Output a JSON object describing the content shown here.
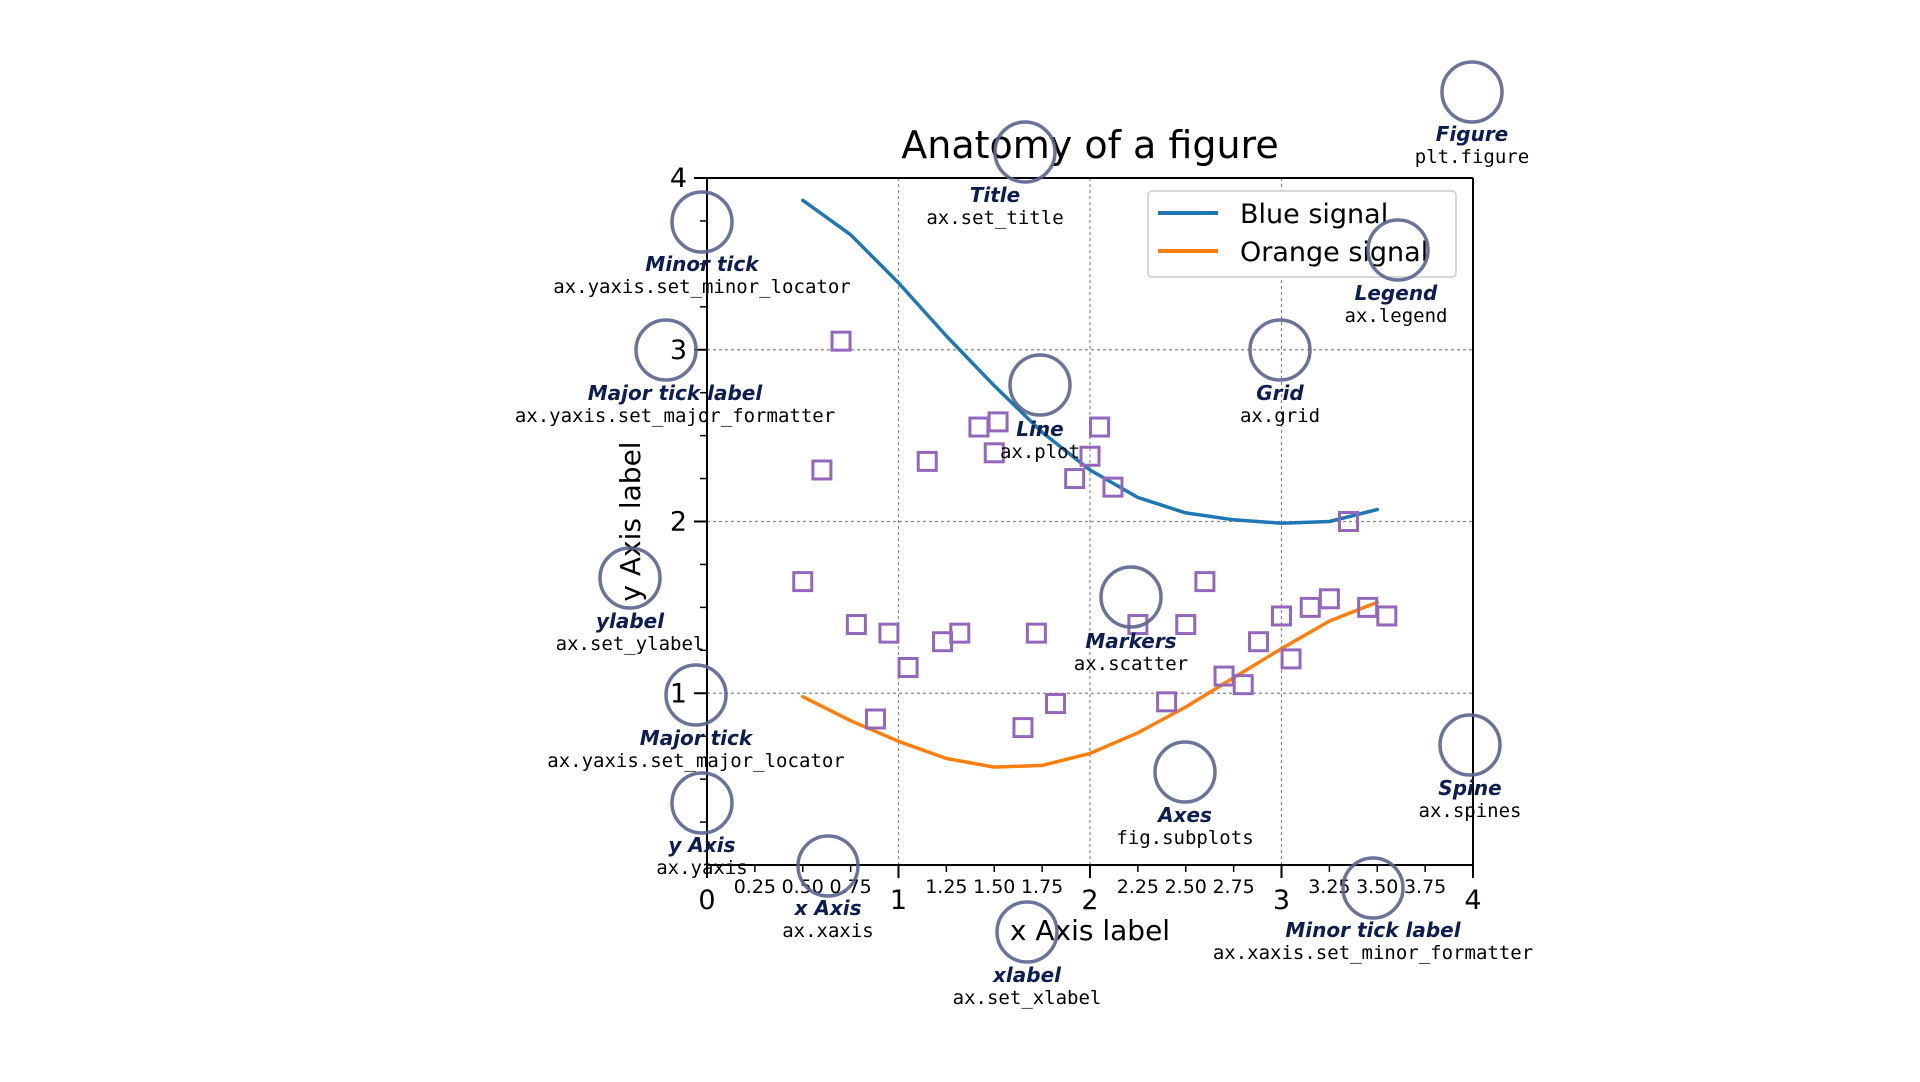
{
  "figure": {
    "title": "Anatomy of a figure",
    "xlabel": "x Axis label",
    "ylabel": "y Axis label"
  },
  "chart_data": {
    "type": "line",
    "xlim": [
      0,
      4
    ],
    "ylim": [
      0,
      4
    ],
    "grid": true,
    "legend_placement": "top-right",
    "major_xticks": [
      {
        "value": 0,
        "label": "0"
      },
      {
        "value": 1,
        "label": "1"
      },
      {
        "value": 2,
        "label": "2"
      },
      {
        "value": 3,
        "label": "3"
      },
      {
        "value": 4,
        "label": "4"
      }
    ],
    "minor_xticks": [
      {
        "value": 0.25,
        "label": "0.25"
      },
      {
        "value": 0.5,
        "label": "0.50"
      },
      {
        "value": 0.75,
        "label": "0.75"
      },
      {
        "value": 1.25,
        "label": "1.25"
      },
      {
        "value": 1.5,
        "label": "1.50"
      },
      {
        "value": 1.75,
        "label": "1.75"
      },
      {
        "value": 2.25,
        "label": "2.25"
      },
      {
        "value": 2.5,
        "label": "2.50"
      },
      {
        "value": 2.75,
        "label": "2.75"
      },
      {
        "value": 3.25,
        "label": "3.25"
      },
      {
        "value": 3.5,
        "label": "3.50"
      },
      {
        "value": 3.75,
        "label": "3.75"
      }
    ],
    "major_yticks": [
      {
        "value": 1,
        "label": "1"
      },
      {
        "value": 2,
        "label": "2"
      },
      {
        "value": 3,
        "label": "3"
      },
      {
        "value": 4,
        "label": "4"
      }
    ],
    "minor_yticks": [
      0.25,
      0.5,
      0.75,
      1.25,
      1.5,
      1.75,
      2.25,
      2.5,
      2.75,
      3.25,
      3.5,
      3.75
    ],
    "series": [
      {
        "name": "Blue signal",
        "color": "#1f77b4",
        "x": [
          0.5,
          0.75,
          1.0,
          1.25,
          1.5,
          1.75,
          2.0,
          2.25,
          2.5,
          2.75,
          3.0,
          3.25,
          3.5
        ],
        "y": [
          3.87,
          3.67,
          3.39,
          3.08,
          2.79,
          2.52,
          2.3,
          2.14,
          2.05,
          2.01,
          1.99,
          2.0,
          2.07
        ]
      },
      {
        "name": "Orange signal",
        "color": "#ff7f0e",
        "x": [
          0.5,
          0.75,
          1.0,
          1.25,
          1.5,
          1.75,
          2.0,
          2.25,
          2.5,
          2.75,
          3.0,
          3.25,
          3.5
        ],
        "y": [
          0.98,
          0.84,
          0.72,
          0.62,
          0.57,
          0.58,
          0.65,
          0.77,
          0.92,
          1.09,
          1.26,
          1.42,
          1.53
        ]
      }
    ],
    "scatter": {
      "marker": "square",
      "color": "#9467bd",
      "points": [
        [
          0.5,
          1.65
        ],
        [
          0.6,
          2.3
        ],
        [
          0.7,
          3.05
        ],
        [
          0.78,
          1.4
        ],
        [
          0.88,
          0.85
        ],
        [
          0.95,
          1.35
        ],
        [
          1.05,
          1.15
        ],
        [
          1.15,
          2.35
        ],
        [
          1.23,
          1.3
        ],
        [
          1.32,
          1.35
        ],
        [
          1.42,
          2.55
        ],
        [
          1.5,
          2.4
        ],
        [
          1.52,
          2.58
        ],
        [
          1.65,
          0.8
        ],
        [
          1.72,
          1.35
        ],
        [
          1.82,
          0.94
        ],
        [
          1.92,
          2.25
        ],
        [
          2.05,
          2.55
        ],
        [
          2.0,
          2.38
        ],
        [
          2.12,
          2.2
        ],
        [
          2.25,
          1.4
        ],
        [
          2.4,
          0.95
        ],
        [
          2.5,
          1.4
        ],
        [
          2.6,
          1.65
        ],
        [
          2.7,
          1.1
        ],
        [
          2.8,
          1.05
        ],
        [
          2.88,
          1.3
        ],
        [
          3.0,
          1.45
        ],
        [
          3.05,
          1.2
        ],
        [
          3.15,
          1.5
        ],
        [
          3.25,
          1.55
        ],
        [
          3.35,
          2.0
        ],
        [
          3.45,
          1.5
        ],
        [
          3.55,
          1.45
        ]
      ]
    }
  },
  "annotations": [
    {
      "name": "Figure",
      "code": "plt.figure"
    },
    {
      "name": "Title",
      "code": "ax.set_title"
    },
    {
      "name": "Minor tick",
      "code": "ax.yaxis.set_minor_locator"
    },
    {
      "name": "Legend",
      "code": "ax.legend"
    },
    {
      "name": "Major tick label",
      "code": "ax.yaxis.set_major_formatter"
    },
    {
      "name": "Line",
      "code": "ax.plot"
    },
    {
      "name": "Grid",
      "code": "ax.grid"
    },
    {
      "name": "ylabel",
      "code": "ax.set_ylabel"
    },
    {
      "name": "Markers",
      "code": "ax.scatter"
    },
    {
      "name": "Major tick",
      "code": "ax.yaxis.set_major_locator"
    },
    {
      "name": "Spine",
      "code": "ax.spines"
    },
    {
      "name": "Axes",
      "code": "fig.subplots"
    },
    {
      "name": "y Axis",
      "code": "ax.yaxis"
    },
    {
      "name": "x Axis",
      "code": "ax.xaxis"
    },
    {
      "name": "Minor tick label",
      "code": "ax.xaxis.set_minor_formatter"
    },
    {
      "name": "xlabel",
      "code": "ax.set_xlabel"
    }
  ],
  "colors": {
    "marker_circle": "#5a6590",
    "annotation_name": "#0c1d52",
    "grid": "#888888"
  }
}
